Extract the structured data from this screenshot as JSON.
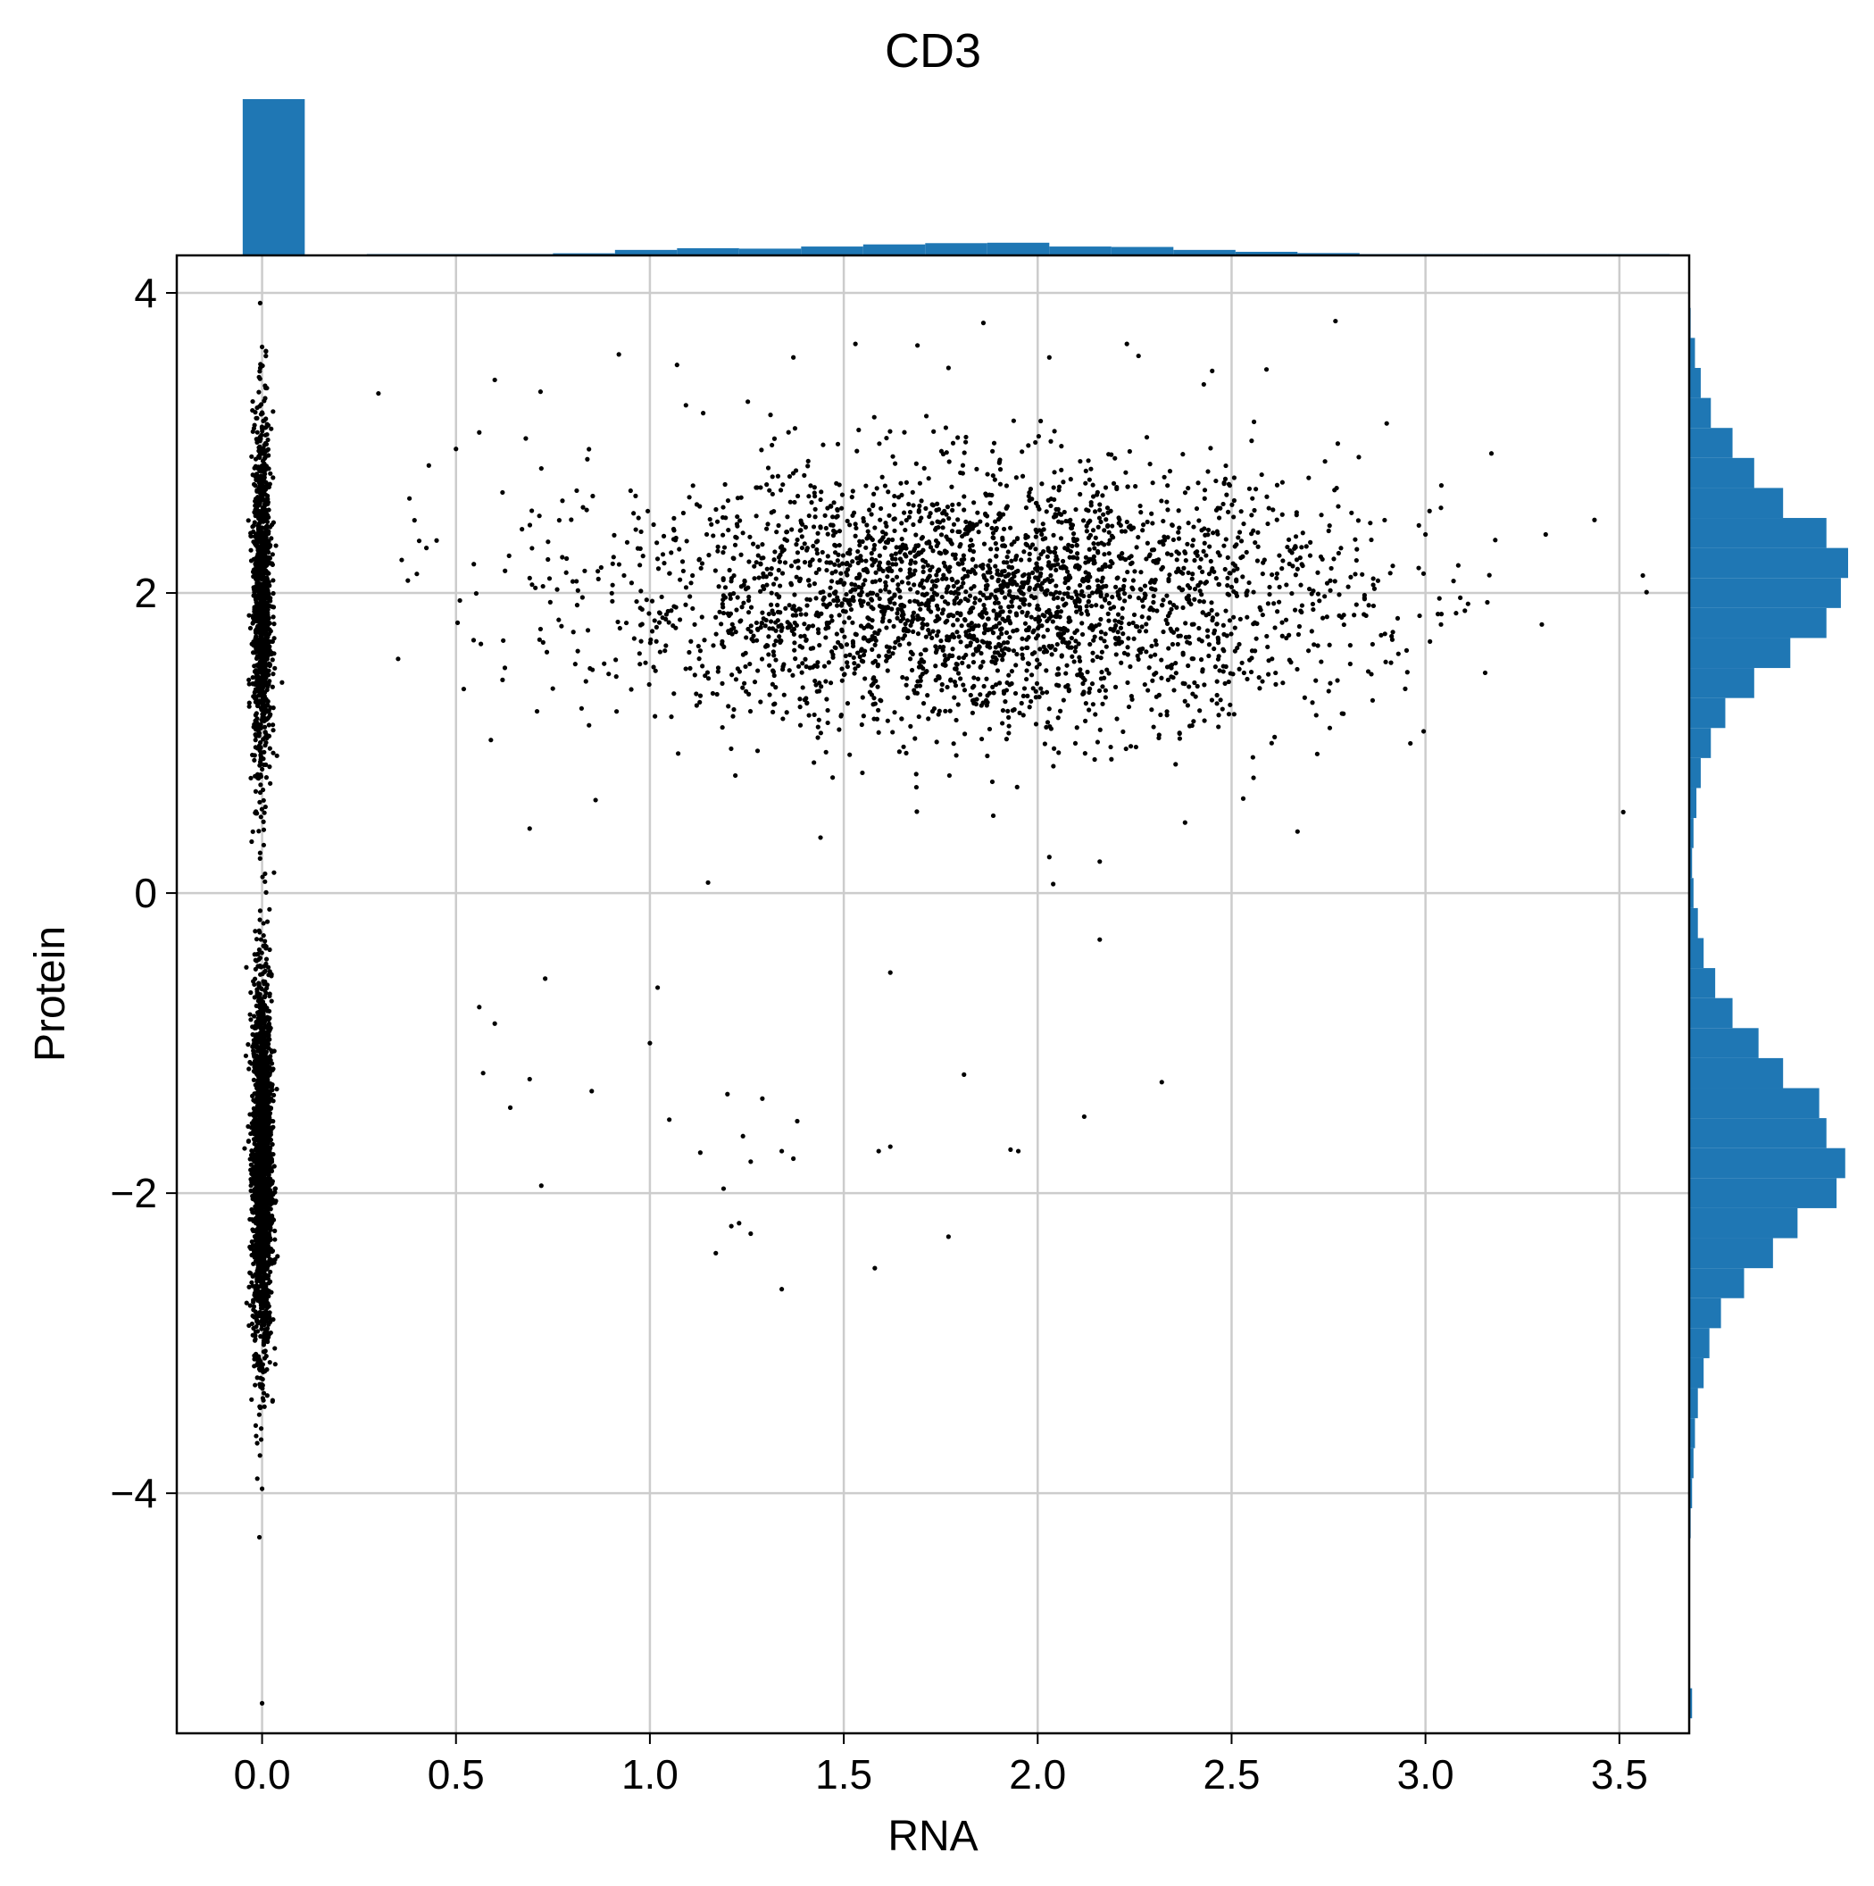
{
  "chart_data": {
    "type": "scatter",
    "title": "CD3",
    "xlabel": "RNA",
    "ylabel": "Protein",
    "xlim": [
      -0.22,
      3.68
    ],
    "ylim": [
      -5.6,
      4.25
    ],
    "xticks": [
      0.0,
      0.5,
      1.0,
      1.5,
      2.0,
      2.5,
      3.0,
      3.5
    ],
    "xtick_labels": [
      "0.0",
      "0.5",
      "1.0",
      "1.5",
      "2.0",
      "2.5",
      "3.0",
      "3.5"
    ],
    "yticks": [
      -4,
      -2,
      0,
      2,
      4
    ],
    "ytick_labels": [
      "−4",
      "−2",
      "0",
      "2",
      "4"
    ],
    "grid": true,
    "point_color": "#000000",
    "hist_color": "#1f77b4",
    "top_histogram": {
      "bin_edges": [
        -0.05,
        0.11,
        0.27,
        0.43,
        0.59,
        0.75,
        0.91,
        1.07,
        1.23,
        1.39,
        1.55,
        1.71,
        1.87,
        2.03,
        2.19,
        2.35,
        2.51,
        2.67,
        2.83,
        2.99,
        3.15,
        3.31,
        3.47,
        3.63
      ],
      "counts": [
        3700,
        0,
        3,
        10,
        20,
        50,
        130,
        170,
        160,
        210,
        260,
        290,
        300,
        210,
        200,
        130,
        85,
        55,
        30,
        12,
        5,
        3,
        1
      ]
    },
    "right_histogram": {
      "bin_edges": [
        -5.5,
        -5.3,
        -5.1,
        -4.9,
        -4.7,
        -4.5,
        -4.3,
        -4.1,
        -3.9,
        -3.7,
        -3.5,
        -3.3,
        -3.1,
        -2.9,
        -2.7,
        -2.5,
        -2.3,
        -2.1,
        -1.9,
        -1.7,
        -1.5,
        -1.3,
        -1.1,
        -0.9,
        -0.7,
        -0.5,
        -0.3,
        -0.1,
        0.1,
        0.3,
        0.5,
        0.7,
        0.9,
        1.1,
        1.3,
        1.5,
        1.7,
        1.9,
        2.1,
        2.3,
        2.5,
        2.7,
        2.9,
        3.1,
        3.3,
        3.5,
        3.7,
        3.9
      ],
      "counts": [
        2,
        0,
        0,
        0,
        0,
        0,
        1,
        2,
        3,
        4,
        6,
        10,
        14,
        22,
        38,
        58,
        75,
        102,
        108,
        95,
        90,
        65,
        48,
        30,
        18,
        10,
        6,
        3,
        2,
        3,
        5,
        8,
        15,
        25,
        45,
        70,
        95,
        105,
        110,
        95,
        65,
        45,
        30,
        15,
        8,
        4,
        1
      ]
    },
    "scatter_clusters": [
      {
        "x_center": 0.0,
        "x_spread": 0.012,
        "y_center": -1.8,
        "y_spread": 0.62,
        "n": 2300
      },
      {
        "x_center": 0.0,
        "x_spread": 0.012,
        "y_center": 1.95,
        "y_spread": 0.6,
        "n": 1100
      },
      {
        "x_center": 1.85,
        "x_spread": 0.48,
        "y_center": 1.97,
        "y_spread": 0.43,
        "n": 3000
      }
    ],
    "scatter_points": [
      [
        0.3,
        3.33
      ],
      [
        0.38,
        2.63
      ],
      [
        0.43,
        2.85
      ],
      [
        0.5,
        2.96
      ],
      [
        0.56,
        3.07
      ],
      [
        0.6,
        3.42
      ],
      [
        0.62,
        2.67
      ],
      [
        0.68,
        3.03
      ],
      [
        0.72,
        2.83
      ],
      [
        0.36,
        2.22
      ],
      [
        0.45,
        2.35
      ],
      [
        0.51,
        1.95
      ],
      [
        0.52,
        1.36
      ],
      [
        0.59,
        1.02
      ],
      [
        0.69,
        0.43
      ],
      [
        0.86,
        0.62
      ],
      [
        0.92,
        3.59
      ],
      [
        1.07,
        3.52
      ],
      [
        1.37,
        3.57
      ],
      [
        1.53,
        3.66
      ],
      [
        1.69,
        3.65
      ],
      [
        1.77,
        3.5
      ],
      [
        1.86,
        3.8
      ],
      [
        2.03,
        3.57
      ],
      [
        2.23,
        3.66
      ],
      [
        2.26,
        3.58
      ],
      [
        2.45,
        3.48
      ],
      [
        2.59,
        3.49
      ],
      [
        2.9,
        3.13
      ],
      [
        3.0,
        2.39
      ],
      [
        3.04,
        1.79
      ],
      [
        3.17,
        2.93
      ],
      [
        3.31,
        2.39
      ],
      [
        3.3,
        1.79
      ],
      [
        3.51,
        0.54
      ],
      [
        1.15,
        0.07
      ],
      [
        2.04,
        0.06
      ],
      [
        2.03,
        0.24
      ],
      [
        2.16,
        0.21
      ],
      [
        2.16,
        -0.31
      ],
      [
        2.38,
        0.47
      ],
      [
        2.53,
        0.63
      ],
      [
        2.67,
        0.41
      ],
      [
        1.44,
        0.37
      ],
      [
        1.62,
        -0.53
      ],
      [
        1.02,
        -0.63
      ],
      [
        0.73,
        -0.57
      ],
      [
        0.56,
        -0.76
      ],
      [
        0.6,
        -0.87
      ],
      [
        1.0,
        -1.0
      ],
      [
        0.57,
        -1.2
      ],
      [
        0.69,
        -1.24
      ],
      [
        0.64,
        -1.43
      ],
      [
        0.85,
        -1.32
      ],
      [
        1.05,
        -1.51
      ],
      [
        1.13,
        -1.73
      ],
      [
        1.2,
        -1.34
      ],
      [
        1.29,
        -1.37
      ],
      [
        1.38,
        -1.52
      ],
      [
        1.24,
        -1.62
      ],
      [
        1.26,
        -1.79
      ],
      [
        1.34,
        -1.72
      ],
      [
        1.37,
        -1.77
      ],
      [
        1.59,
        -1.72
      ],
      [
        1.62,
        -1.69
      ],
      [
        1.93,
        -1.71
      ],
      [
        1.95,
        -1.72
      ],
      [
        1.81,
        -1.21
      ],
      [
        2.12,
        -1.49
      ],
      [
        2.32,
        -1.26
      ],
      [
        0.72,
        -1.95
      ],
      [
        1.19,
        -1.97
      ],
      [
        1.21,
        -2.22
      ],
      [
        1.23,
        -2.2
      ],
      [
        1.26,
        -2.27
      ],
      [
        1.17,
        -2.4
      ],
      [
        1.34,
        -2.64
      ],
      [
        1.58,
        -2.5
      ],
      [
        1.77,
        -2.29
      ],
      [
        0.0,
        -3.97
      ],
      [
        0.0,
        -5.4
      ],
      [
        0.0,
        3.64
      ],
      [
        0.01,
        3.61
      ]
    ]
  }
}
